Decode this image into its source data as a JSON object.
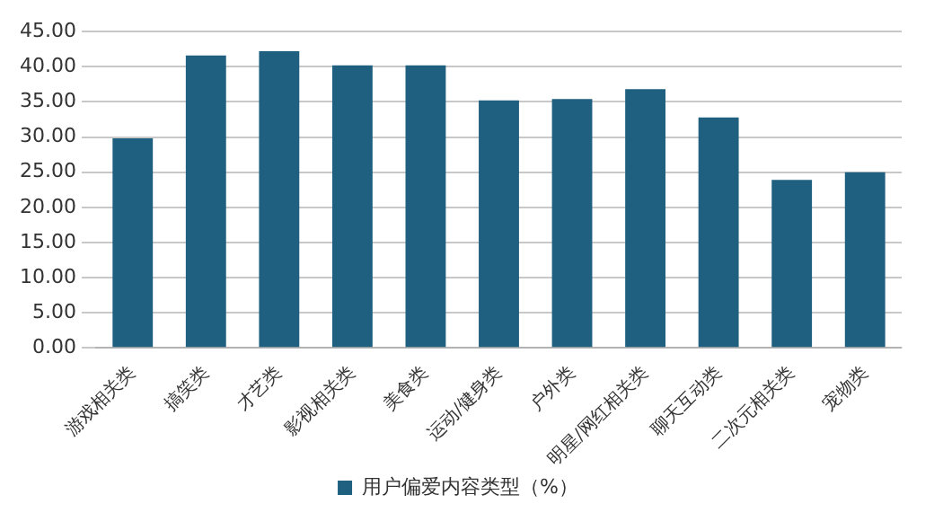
{
  "chart_data": {
    "type": "bar",
    "categories": [
      "游戏相关类",
      "搞笑类",
      "才艺类",
      "影视相关类",
      "美食类",
      "运动/健身类",
      "户外类",
      "明星/网红相关类",
      "聊天互动类",
      "二次元相关类",
      "宠物类"
    ],
    "series": [
      {
        "name": "用户偏爱内容类型（%）",
        "color": "#1f5f7f",
        "values": [
          29.8,
          41.6,
          42.2,
          40.2,
          40.2,
          35.2,
          35.4,
          36.8,
          32.8,
          23.9,
          25.0
        ]
      }
    ],
    "ylim": [
      0,
      45
    ],
    "yticks": [
      {
        "value": 0,
        "label": "0.00"
      },
      {
        "value": 5,
        "label": "5.00"
      },
      {
        "value": 10,
        "label": "10.00"
      },
      {
        "value": 15,
        "label": "15.00"
      },
      {
        "value": 20,
        "label": "20.00"
      },
      {
        "value": 25,
        "label": "25.00"
      },
      {
        "value": 30,
        "label": "30.00"
      },
      {
        "value": 35,
        "label": "35.00"
      },
      {
        "value": 40,
        "label": "40.00"
      },
      {
        "value": 45,
        "label": "45.00"
      }
    ],
    "grid": "y",
    "legend": "bottom"
  }
}
